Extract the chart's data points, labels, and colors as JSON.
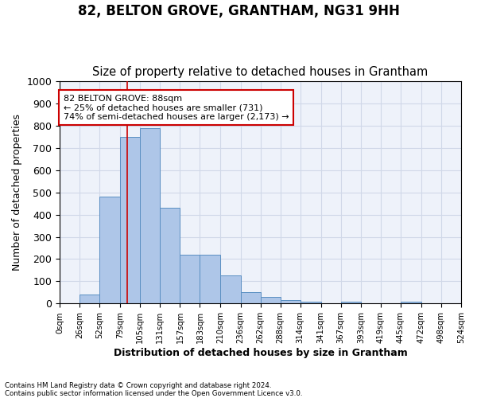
{
  "title": "82, BELTON GROVE, GRANTHAM, NG31 9HH",
  "subtitle": "Size of property relative to detached houses in Grantham",
  "xlabel": "Distribution of detached houses by size in Grantham",
  "ylabel": "Number of detached properties",
  "bar_edges": [
    0,
    26,
    52,
    79,
    105,
    131,
    157,
    183,
    210,
    236,
    262,
    288,
    314,
    341,
    367,
    393,
    419,
    445,
    472,
    498,
    524
  ],
  "bar_heights": [
    0,
    42,
    480,
    748,
    790,
    432,
    218,
    218,
    128,
    52,
    30,
    16,
    8,
    0,
    8,
    0,
    0,
    8,
    0,
    0
  ],
  "bar_color": "#aec6e8",
  "bar_edge_color": "#5a8fc2",
  "property_line_x": 88,
  "property_line_color": "#cc0000",
  "annotation_text": "82 BELTON GROVE: 88sqm\n← 25% of detached houses are smaller (731)\n74% of semi-detached houses are larger (2,173) →",
  "annotation_box_color": "#cc0000",
  "ylim": [
    0,
    1000
  ],
  "yticks": [
    0,
    100,
    200,
    300,
    400,
    500,
    600,
    700,
    800,
    900,
    1000
  ],
  "xtick_labels": [
    "0sqm",
    "26sqm",
    "52sqm",
    "79sqm",
    "105sqm",
    "131sqm",
    "157sqm",
    "183sqm",
    "210sqm",
    "236sqm",
    "262sqm",
    "288sqm",
    "314sqm",
    "341sqm",
    "367sqm",
    "393sqm",
    "419sqm",
    "445sqm",
    "472sqm",
    "498sqm",
    "524sqm"
  ],
  "grid_color": "#d0d8e8",
  "background_color": "#eef2fa",
  "footnote": "Contains HM Land Registry data © Crown copyright and database right 2024.\nContains public sector information licensed under the Open Government Licence v3.0.",
  "title_fontsize": 12,
  "subtitle_fontsize": 10.5
}
